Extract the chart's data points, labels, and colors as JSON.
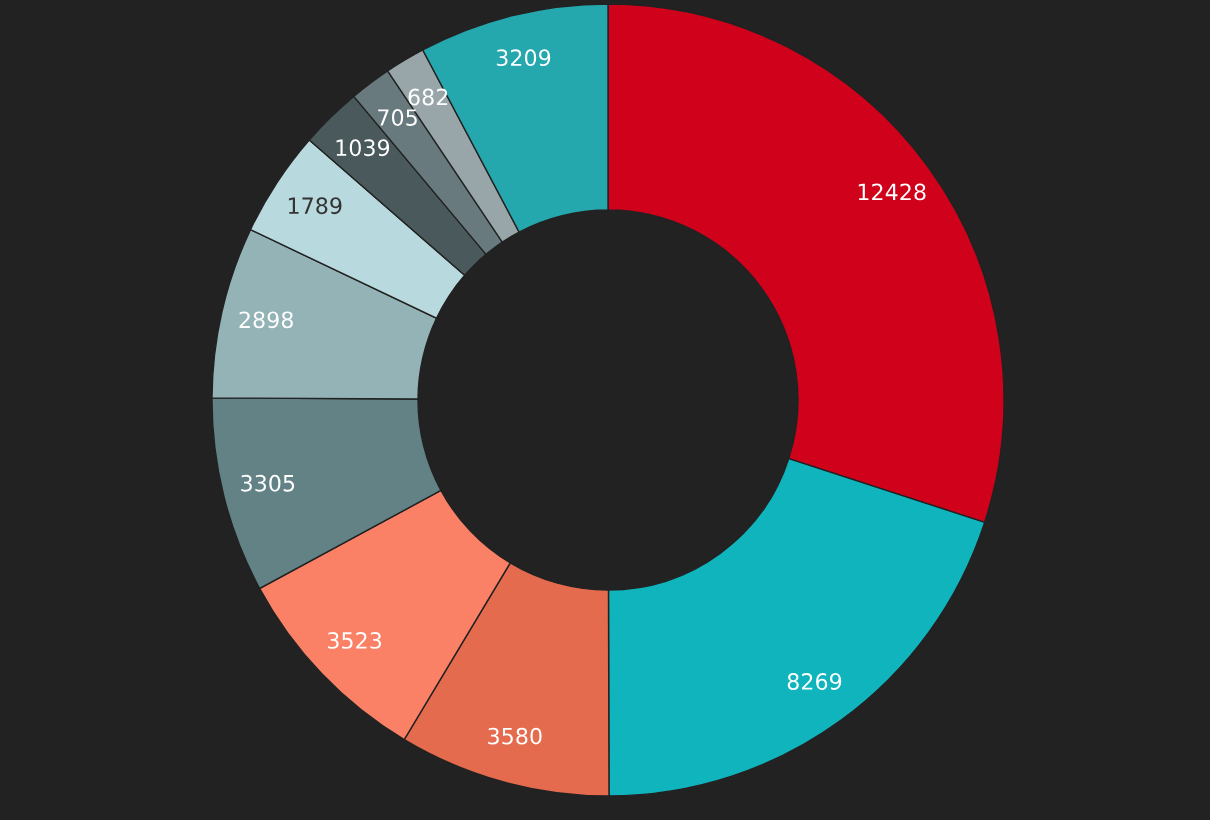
{
  "chart_data": {
    "type": "donut",
    "categories": [
      null,
      null,
      null,
      null,
      null,
      null,
      null,
      null,
      null,
      null,
      null
    ],
    "values": [
      12428,
      8269,
      3580,
      3523,
      3305,
      2898,
      1789,
      1039,
      705,
      682,
      3209
    ],
    "colors": [
      "#d0011b",
      "#10b4bd",
      "#e46b4d",
      "#fa8165",
      "#628285",
      "#94b3b7",
      "#b8d9de",
      "#4a595c",
      "#687a7d",
      "#98a6aa",
      "#24a8ad"
    ],
    "data_labels": true,
    "legend": false
  }
}
